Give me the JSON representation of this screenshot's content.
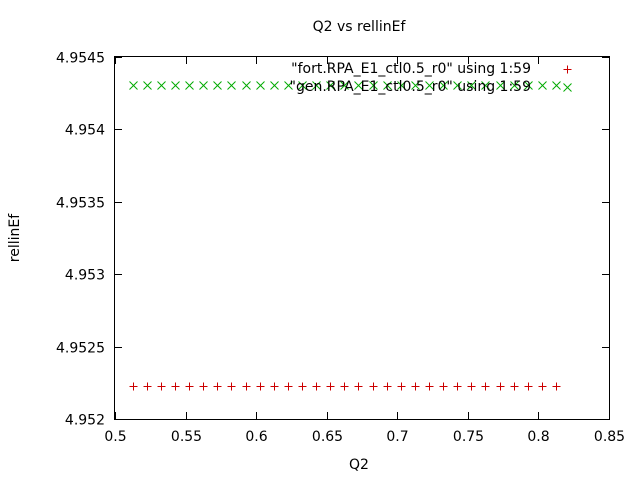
{
  "chart_data": {
    "type": "scatter",
    "title": "Q2 vs rellinEf",
    "xlabel": "Q2",
    "ylabel": "rellinEf",
    "xlim": [
      0.5,
      0.85
    ],
    "ylim": [
      4.952,
      4.9545
    ],
    "xticks": [
      "0.5",
      "0.55",
      "0.6",
      "0.65",
      "0.7",
      "0.75",
      "0.8",
      "0.85"
    ],
    "yticks": [
      "4.952",
      "4.9525",
      "4.953",
      "4.9535",
      "4.954",
      "4.9545"
    ],
    "grid": false,
    "legend_position": "top-right",
    "x": [
      0.5125,
      0.5225,
      0.5325,
      0.5425,
      0.5525,
      0.5625,
      0.5725,
      0.5825,
      0.5925,
      0.6025,
      0.6125,
      0.6225,
      0.6325,
      0.6425,
      0.6525,
      0.6625,
      0.6725,
      0.6825,
      0.6925,
      0.7025,
      0.7125,
      0.7225,
      0.7325,
      0.7425,
      0.7525,
      0.7625,
      0.7725,
      0.7825,
      0.7925,
      0.8025,
      0.8125
    ],
    "series": [
      {
        "name": "\"fort.RPA_E1_ctl0.5_r0\" using 1:59",
        "marker": "plus",
        "color": "#cc0000",
        "y": [
          4.95223,
          4.95223,
          4.95223,
          4.95223,
          4.95223,
          4.95223,
          4.95223,
          4.95223,
          4.95223,
          4.95223,
          4.95223,
          4.95223,
          4.95223,
          4.95223,
          4.95223,
          4.95223,
          4.95223,
          4.95223,
          4.95223,
          4.95223,
          4.95223,
          4.95223,
          4.95223,
          4.95223,
          4.95223,
          4.95223,
          4.95223,
          4.95223,
          4.95223,
          4.95223,
          4.95223
        ]
      },
      {
        "name": "\"gen.RPA_E1_ctl0.5_r0\" using 1:59",
        "marker": "cross",
        "color": "#00aa00",
        "y": [
          4.95431,
          4.95431,
          4.95431,
          4.95431,
          4.95431,
          4.95431,
          4.95431,
          4.95431,
          4.95431,
          4.95431,
          4.95431,
          4.95431,
          4.95431,
          4.95431,
          4.95431,
          4.95431,
          4.95431,
          4.95431,
          4.95431,
          4.95431,
          4.95431,
          4.95431,
          4.95431,
          4.95431,
          4.95431,
          4.95431,
          4.95431,
          4.95431,
          4.95431,
          4.95431,
          4.95431
        ]
      }
    ]
  }
}
